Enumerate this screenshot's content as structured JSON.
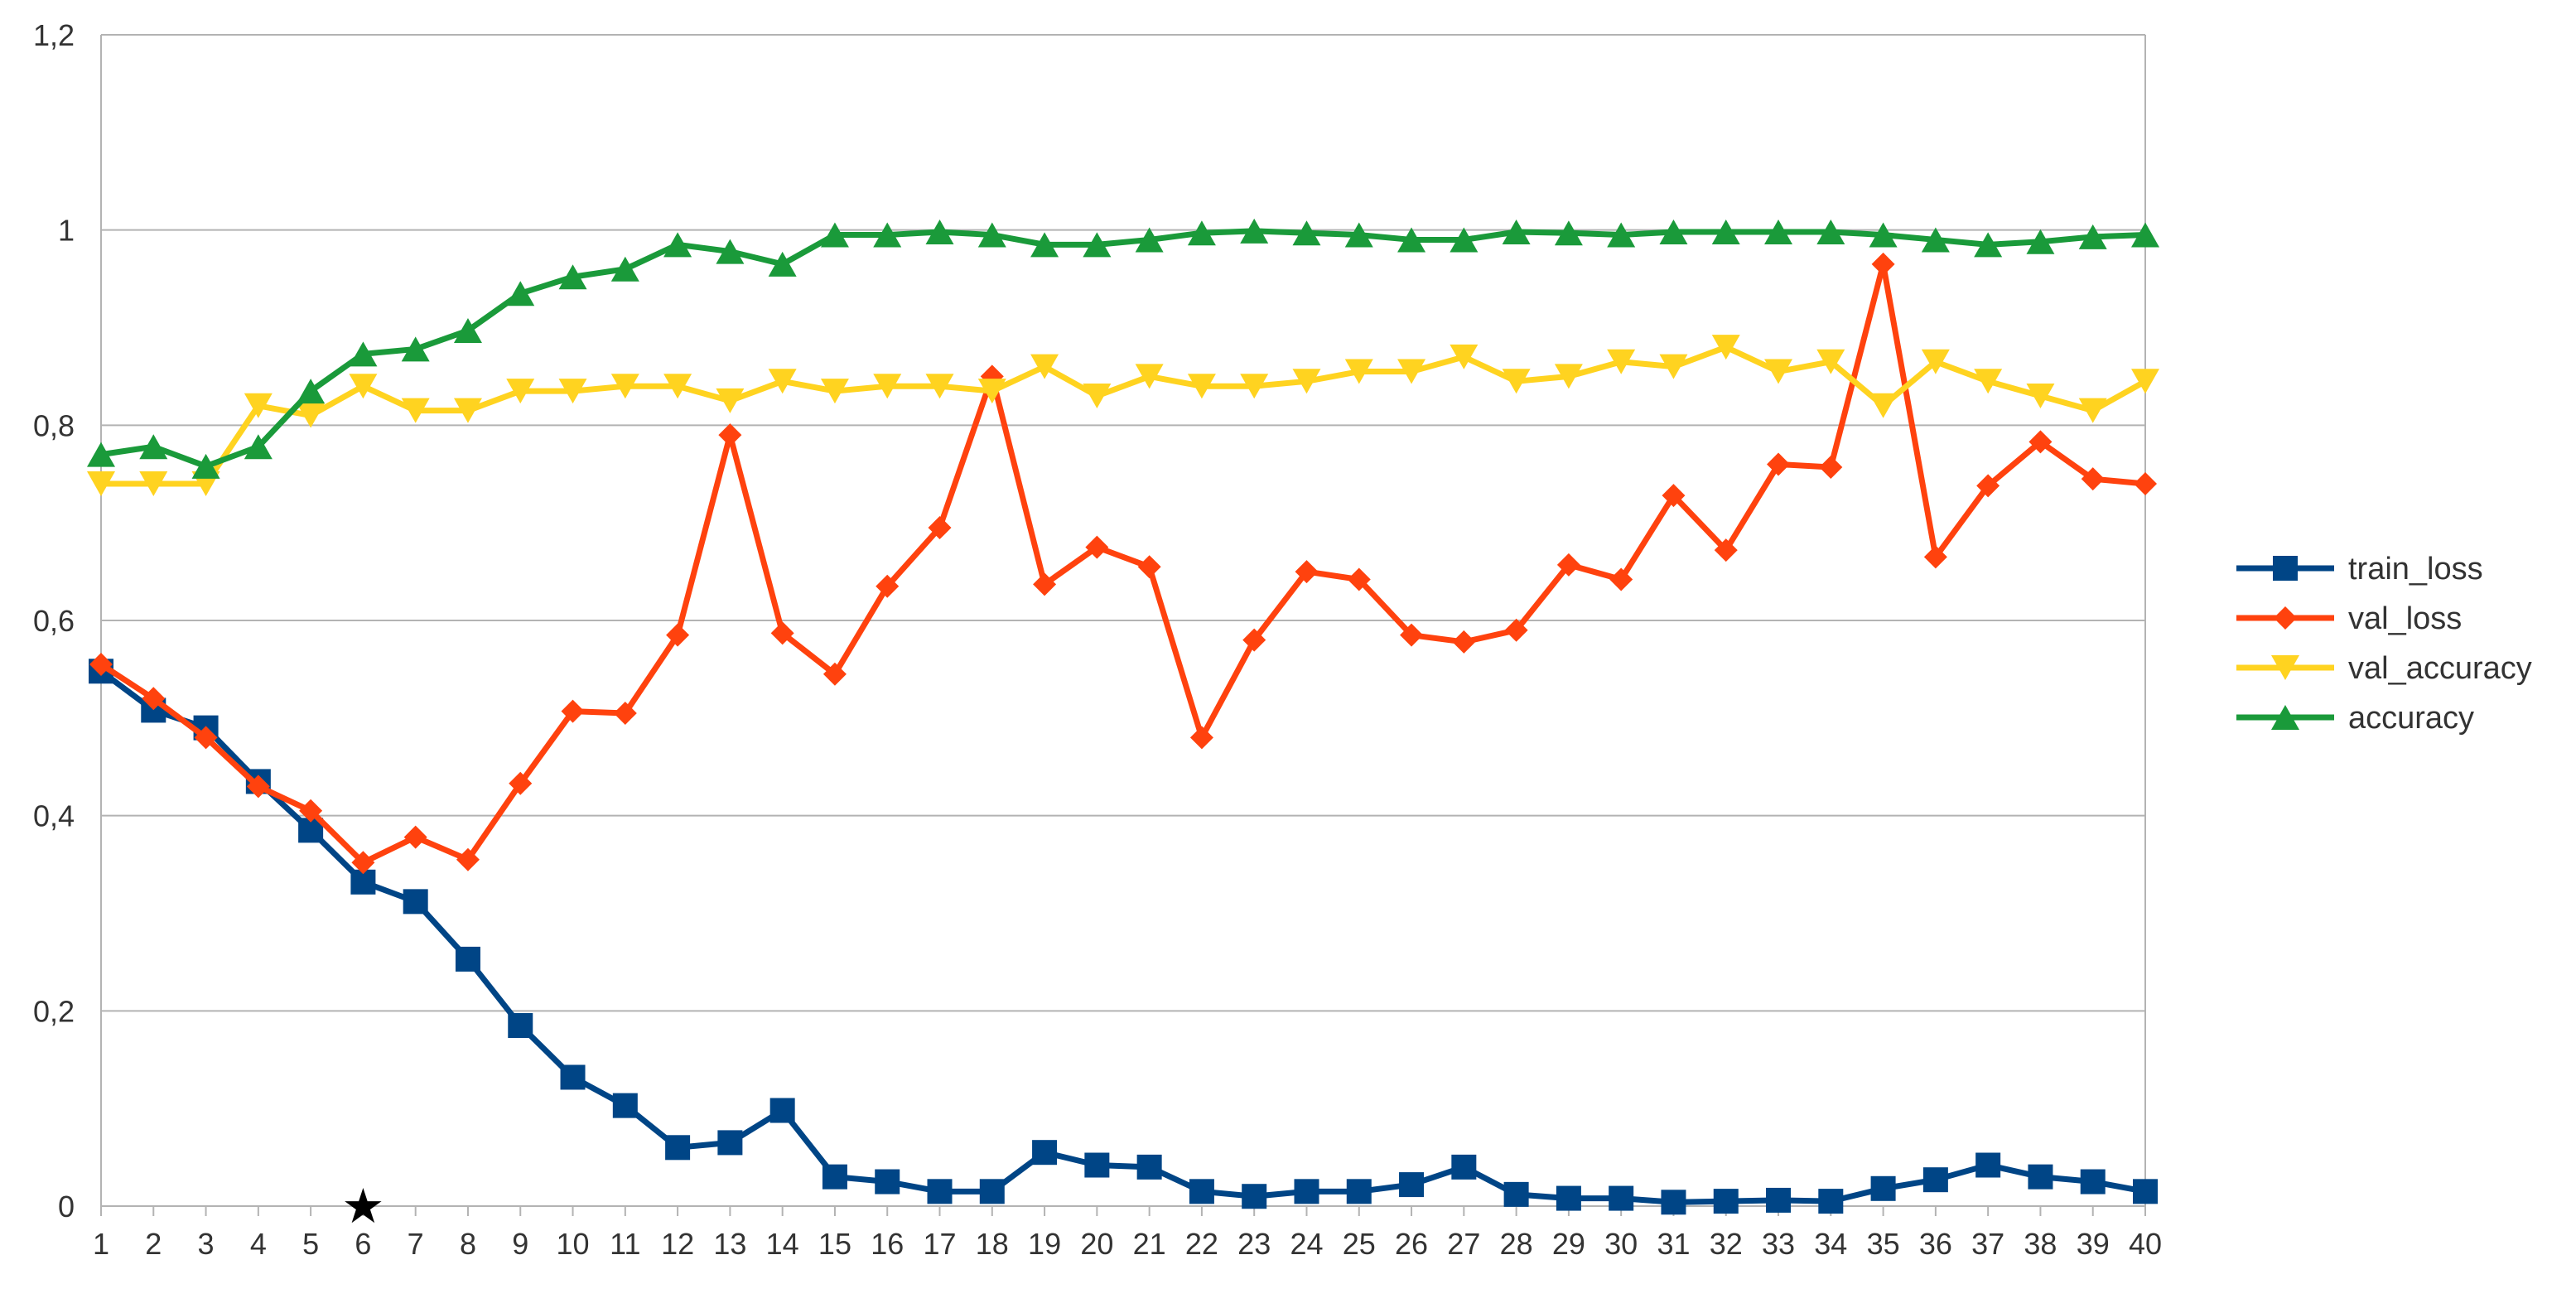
{
  "chart_data": {
    "type": "line",
    "title": "",
    "xlabel": "",
    "ylabel": "",
    "categories": [
      "1",
      "2",
      "3",
      "4",
      "5",
      "6",
      "7",
      "8",
      "9",
      "10",
      "11",
      "12",
      "13",
      "14",
      "15",
      "16",
      "17",
      "18",
      "19",
      "20",
      "21",
      "22",
      "23",
      "24",
      "25",
      "26",
      "27",
      "28",
      "29",
      "30",
      "31",
      "32",
      "33",
      "34",
      "35",
      "36",
      "37",
      "38",
      "39",
      "40"
    ],
    "ylim": [
      0,
      1.2
    ],
    "yticks": [
      0,
      0.2,
      0.4,
      0.6,
      0.8,
      1,
      1.2
    ],
    "ytick_labels": [
      "0",
      "0,2",
      "0,4",
      "0,6",
      "0,8",
      "1",
      "1,2"
    ],
    "grid": "horizontal",
    "legend_position": "right",
    "annotation": {
      "glyph": "★",
      "x": "6",
      "color": "#000000"
    },
    "series": [
      {
        "name": "train_loss",
        "color": "#004586",
        "marker": "square",
        "values": [
          0.548,
          0.508,
          0.49,
          0.435,
          0.385,
          0.332,
          0.312,
          0.253,
          0.185,
          0.132,
          0.103,
          0.06,
          0.065,
          0.098,
          0.03,
          0.025,
          0.015,
          0.015,
          0.055,
          0.042,
          0.04,
          0.015,
          0.01,
          0.015,
          0.015,
          0.022,
          0.04,
          0.012,
          0.008,
          0.008,
          0.004,
          0.005,
          0.006,
          0.005,
          0.018,
          0.027,
          0.042,
          0.03,
          0.025,
          0.015
        ]
      },
      {
        "name": "val_loss",
        "color": "#ff420e",
        "marker": "diamond",
        "values": [
          0.555,
          0.52,
          0.48,
          0.43,
          0.405,
          0.352,
          0.378,
          0.355,
          0.433,
          0.507,
          0.505,
          0.585,
          0.79,
          0.587,
          0.545,
          0.635,
          0.695,
          0.85,
          0.637,
          0.675,
          0.655,
          0.48,
          0.58,
          0.65,
          0.642,
          0.585,
          0.578,
          0.59,
          0.657,
          0.642,
          0.728,
          0.672,
          0.76,
          0.757,
          0.965,
          0.665,
          0.738,
          0.783,
          0.745,
          0.74
        ]
      },
      {
        "name": "val_accuracy",
        "color": "#ffd320",
        "marker": "triangle-down",
        "values": [
          0.74,
          0.74,
          0.74,
          0.82,
          0.81,
          0.84,
          0.815,
          0.815,
          0.835,
          0.835,
          0.84,
          0.84,
          0.825,
          0.845,
          0.835,
          0.84,
          0.84,
          0.835,
          0.86,
          0.83,
          0.85,
          0.84,
          0.84,
          0.845,
          0.855,
          0.855,
          0.87,
          0.845,
          0.85,
          0.865,
          0.86,
          0.88,
          0.855,
          0.865,
          0.82,
          0.865,
          0.845,
          0.83,
          0.815,
          0.845
        ]
      },
      {
        "name": "accuracy",
        "color": "#1a9a3a",
        "marker": "triangle-up",
        "values": [
          0.77,
          0.778,
          0.758,
          0.778,
          0.835,
          0.873,
          0.878,
          0.897,
          0.935,
          0.952,
          0.96,
          0.985,
          0.978,
          0.965,
          0.995,
          0.995,
          0.998,
          0.995,
          0.985,
          0.985,
          0.99,
          0.997,
          0.999,
          0.997,
          0.995,
          0.99,
          0.99,
          0.998,
          0.997,
          0.995,
          0.998,
          0.998,
          0.998,
          0.998,
          0.995,
          0.99,
          0.985,
          0.988,
          0.993,
          0.995
        ]
      }
    ]
  }
}
